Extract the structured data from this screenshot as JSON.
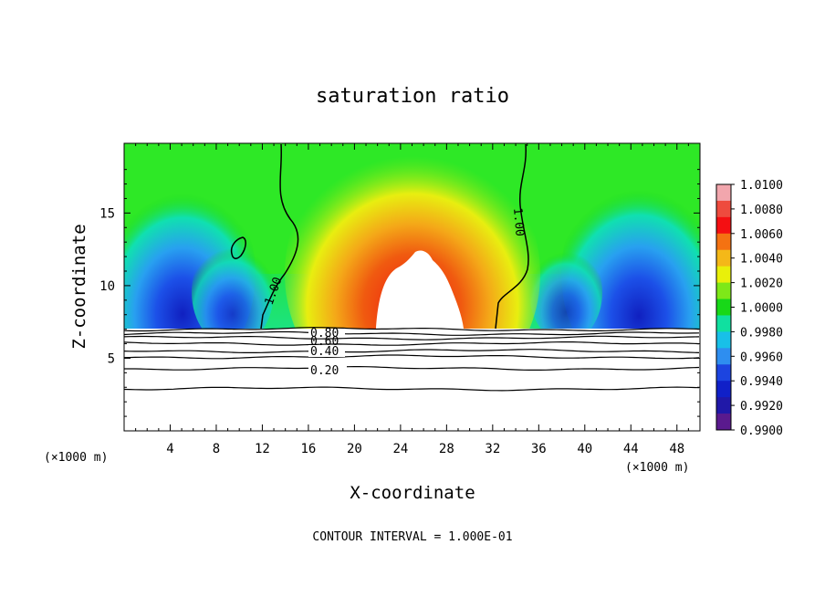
{
  "chart_data": {
    "type": "heatmap",
    "title": "saturation ratio",
    "xlabel": "X-coordinate",
    "ylabel": "Z-coordinate",
    "x_unit_left": "(×1000 m)",
    "x_unit_right": "(×1000 m)",
    "footer": "CONTOUR INTERVAL = 1.000E-01",
    "xlim": [
      0,
      50
    ],
    "ylim": [
      0,
      19.8
    ],
    "xticks": [
      4,
      8,
      12,
      16,
      20,
      24,
      28,
      32,
      36,
      40,
      44,
      48
    ],
    "yticks": [
      5,
      10,
      15
    ],
    "colorbar": {
      "range": [
        0.99,
        1.01
      ],
      "labels": [
        "1.0100",
        "1.0080",
        "1.0060",
        "1.0040",
        "1.0020",
        "1.0000",
        "0.9980",
        "0.9960",
        "0.9940",
        "0.9920",
        "0.9900"
      ],
      "colors": [
        "#f2a6ad",
        "#ee4b3e",
        "#f40f12",
        "#f47212",
        "#f4b818",
        "#e9f00a",
        "#7ee818",
        "#18d818",
        "#10e0a0",
        "#18c0e8",
        "#2e8ef0",
        "#1c44e0",
        "#1020c8",
        "#2018a8",
        "#5a1a8e"
      ]
    },
    "contours": [
      {
        "label": "1.00",
        "value": 1.0
      },
      {
        "label": "0.80",
        "value": 0.8
      },
      {
        "label": "0.60",
        "value": 0.6
      },
      {
        "label": "0.40",
        "value": 0.4
      },
      {
        "label": "0.20",
        "value": 0.2
      }
    ],
    "vertical_profile": {
      "z_break": 7.5,
      "z_top": 19.8,
      "levels_below_break": [
        7.0,
        6.7,
        6.4,
        6.0,
        5.5,
        5.1,
        4.3,
        2.9
      ]
    }
  }
}
